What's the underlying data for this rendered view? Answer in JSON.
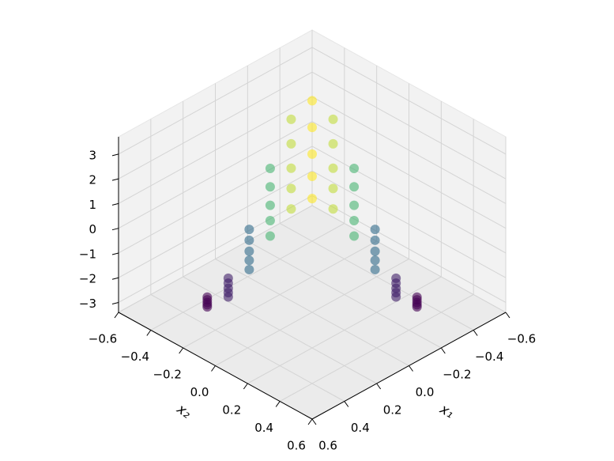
{
  "chart_data": {
    "type": "scatter3d",
    "xlabel": "x₁",
    "ylabel": "x₂",
    "xlim": [
      -0.6,
      0.6
    ],
    "ylim": [
      -0.6,
      0.6
    ],
    "zlim": [
      -3.4,
      3.7
    ],
    "xticks": [
      {
        "value": -0.6,
        "label": "−0.6"
      },
      {
        "value": -0.4,
        "label": "−0.4"
      },
      {
        "value": -0.2,
        "label": "−0.2"
      },
      {
        "value": 0,
        "label": "0.0"
      },
      0.2,
      0.4,
      0.6
    ],
    "yticks": [
      {
        "value": -0.6,
        "label": "−0.6"
      },
      {
        "value": -0.4,
        "label": "−0.4"
      },
      {
        "value": -0.2,
        "label": "−0.2"
      },
      {
        "value": 0,
        "label": "0.0"
      },
      0.2,
      0.4,
      0.6
    ],
    "zticks": [
      {
        "value": -3,
        "label": "−3"
      },
      {
        "value": -2,
        "label": "−2"
      },
      {
        "value": -1,
        "label": "−1"
      },
      0,
      1,
      2,
      3
    ],
    "colormap": "viridis",
    "grid": true,
    "x": [
      0.295,
      0.203,
      0.072,
      -0.077,
      -0.21,
      -0.3,
      -0.34,
      -0.337,
      -0.318,
      -0.317,
      -0.355,
      0.31,
      0.231,
      0.133,
      0.026,
      -0.072,
      -0.15,
      -0.202,
      -0.234,
      -0.257,
      -0.289,
      -0.34,
      0.325,
      0.26,
      0.195,
      0.13,
      0.065,
      0,
      -0.065,
      -0.13,
      -0.195,
      -0.26,
      -0.325,
      0.338,
      0.284,
      0.246,
      0.216,
      0.179,
      0.125,
      0.049,
      -0.044,
      -0.144,
      -0.236,
      -0.312,
      0.35,
      0.308,
      0.298,
      0.303,
      0.294,
      0.25,
      0.164,
      0.043,
      -0.092,
      -0.212,
      -0.3
    ],
    "y": [
      -0.355,
      -0.317,
      -0.318,
      -0.337,
      -0.34,
      -0.3,
      -0.21,
      -0.077,
      0.072,
      0.203,
      0.295,
      -0.34,
      -0.289,
      -0.257,
      -0.234,
      -0.202,
      -0.15,
      -0.072,
      0.026,
      0.133,
      0.231,
      0.31,
      -0.325,
      -0.26,
      -0.195,
      -0.13,
      -0.065,
      0,
      0.065,
      0.13,
      0.195,
      0.26,
      0.325,
      -0.312,
      -0.236,
      -0.144,
      -0.044,
      0.049,
      0.125,
      0.179,
      0.216,
      0.246,
      0.284,
      0.338,
      -0.3,
      -0.212,
      -0.092,
      0.043,
      0.164,
      0.25,
      0.294,
      0.303,
      0.298,
      0.308,
      0.35
    ],
    "z": [
      -3,
      -2.43,
      -0.93,
      0.93,
      2.43,
      3,
      2.43,
      0.93,
      -0.93,
      -2.43,
      -3,
      -3,
      -2.43,
      -0.93,
      0.93,
      2.43,
      3,
      2.43,
      0.93,
      -0.93,
      -2.43,
      -3,
      -3,
      -2.43,
      -0.93,
      0.93,
      2.43,
      3,
      2.43,
      0.93,
      -0.93,
      -2.43,
      -3,
      -3,
      -2.43,
      -0.93,
      0.93,
      2.43,
      3,
      2.43,
      0.93,
      -0.93,
      -2.43,
      -3,
      -3,
      -2.43,
      -0.93,
      0.93,
      2.43,
      3,
      2.43,
      0.93,
      -0.93,
      -2.43,
      -3
    ]
  }
}
